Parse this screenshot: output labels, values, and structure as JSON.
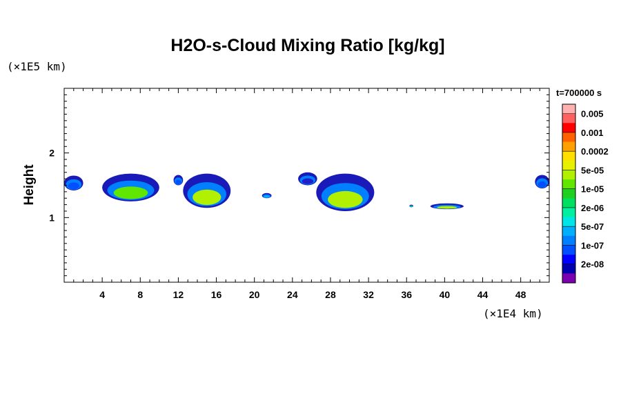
{
  "chart_data": {
    "type": "heatmap",
    "title": "H2O-s-Cloud Mixing Ratio [kg/kg]",
    "xlabel": "",
    "ylabel": "Height",
    "x_unit": "(×1E4 km)",
    "y_unit": "(×1E5 km)",
    "time_label": "t=700000 s",
    "xlim": [
      0,
      51
    ],
    "ylim": [
      0,
      3
    ],
    "x_ticks": [
      4,
      8,
      12,
      16,
      20,
      24,
      28,
      32,
      36,
      40,
      44,
      48
    ],
    "y_ticks": [
      1,
      2
    ],
    "colorbar": {
      "labels": [
        "0.005",
        "0.001",
        "0.0002",
        "5e-05",
        "1e-05",
        "2e-06",
        "5e-07",
        "1e-07",
        "2e-08"
      ],
      "colors_top_to_bottom": [
        "#ffb0b0",
        "#ff6060",
        "#ff0000",
        "#ff6000",
        "#ffa000",
        "#ffdf00",
        "#e6f000",
        "#b0f000",
        "#60e600",
        "#20d020",
        "#00e060",
        "#00f0a0",
        "#00e6e6",
        "#00b0ff",
        "#0080ff",
        "#0050ff",
        "#0000ff",
        "#0000b0",
        "#7a00b0"
      ]
    },
    "cloud_regions": [
      {
        "x": [
          0,
          2
        ],
        "y": [
          1.42,
          1.65
        ],
        "level": "1e-07"
      },
      {
        "x": [
          4,
          10
        ],
        "y": [
          1.25,
          1.68
        ],
        "level": "1e-05"
      },
      {
        "x": [
          11.5,
          12.5
        ],
        "y": [
          1.5,
          1.66
        ],
        "level": "1e-07"
      },
      {
        "x": [
          12.5,
          17.5
        ],
        "y": [
          1.15,
          1.68
        ],
        "level": "5e-05"
      },
      {
        "x": [
          20.8,
          21.8
        ],
        "y": [
          1.3,
          1.38
        ],
        "level": "5e-07"
      },
      {
        "x": [
          24.6,
          26.6
        ],
        "y": [
          1.5,
          1.7
        ],
        "level": "2e-08"
      },
      {
        "x": [
          26.5,
          32.6
        ],
        "y": [
          1.1,
          1.68
        ],
        "level": "5e-05"
      },
      {
        "x": [
          36.3,
          36.7
        ],
        "y": [
          1.16,
          1.2
        ],
        "level": "2e-06"
      },
      {
        "x": [
          38.5,
          42
        ],
        "y": [
          1.13,
          1.22
        ],
        "level": "5e-05"
      },
      {
        "x": [
          49.5,
          51
        ],
        "y": [
          1.45,
          1.66
        ],
        "level": "1e-07"
      }
    ]
  }
}
